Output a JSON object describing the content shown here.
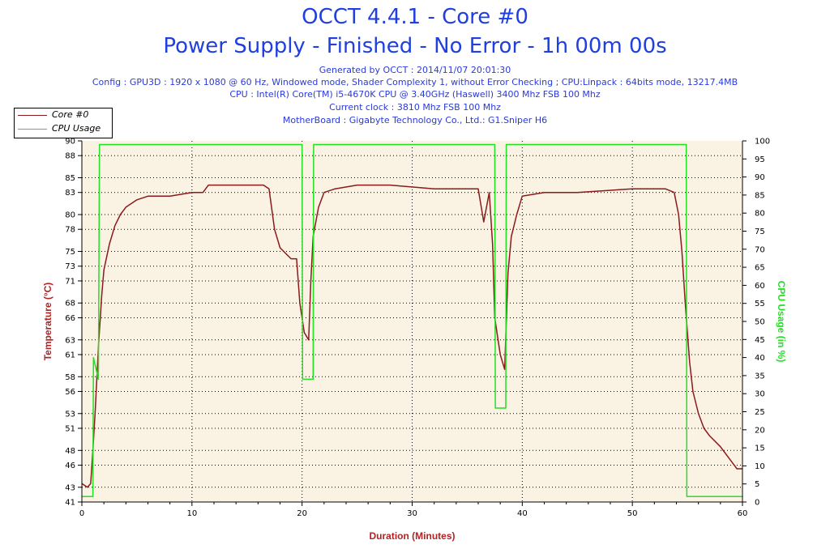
{
  "header": {
    "title": "OCCT 4.4.1 - Core #0",
    "subtitle": "Power Supply - Finished - No Error - 1h 00m 00s",
    "info_lines": [
      "Generated by OCCT : 2014/11/07 20:01:30",
      "Config : GPU3D : 1920 x 1080 @ 60 Hz, Windowed mode, Shader Complexity 1, without Error Checking ; CPU:Linpack : 64bits mode, 13217.4MB",
      "CPU : Intel(R) Core(TM) i5-4670K CPU @ 3.40GHz (Haswell) 3400 Mhz FSB 100 Mhz",
      "Current clock : 3810 Mhz FSB 100 Mhz",
      "MotherBoard : Gigabyte Technology Co., Ltd.: G1.Sniper H6"
    ]
  },
  "legend": [
    {
      "label": "Core #0",
      "color": "#8b1a1a"
    },
    {
      "label": "CPU Usage",
      "color": "#22e022"
    }
  ],
  "chart_data": {
    "type": "line",
    "xlabel": "Duration (Minutes)",
    "ylabel": "Temperature (°C)",
    "ylabel_right": "CPU Usage (in %)",
    "xlim": [
      0,
      60
    ],
    "ylim": [
      41,
      90
    ],
    "ylim_right": [
      0,
      100
    ],
    "x_ticks": [
      0,
      10,
      20,
      30,
      40,
      50,
      60
    ],
    "y_ticks": [
      41,
      43,
      46,
      48,
      51,
      53,
      56,
      58,
      61,
      63,
      66,
      68,
      71,
      73,
      75,
      78,
      80,
      83,
      85,
      88,
      90
    ],
    "y_ticks_right": [
      0,
      5,
      10,
      15,
      20,
      25,
      30,
      35,
      40,
      45,
      50,
      55,
      60,
      65,
      70,
      75,
      80,
      85,
      90,
      95,
      100
    ],
    "grid": true,
    "background": "#faf3e4",
    "legend_position": "top-left",
    "series": [
      {
        "name": "Core #0",
        "axis": "left",
        "color": "#8b1a1a",
        "x": [
          0,
          0.5,
          0.8,
          1.0,
          1.2,
          1.5,
          1.8,
          2.0,
          2.5,
          3.0,
          3.5,
          4.0,
          5.0,
          6.0,
          8.0,
          10.0,
          11.0,
          11.5,
          12.0,
          15.0,
          16.5,
          17.0,
          17.5,
          18.0,
          19.0,
          19.5,
          19.8,
          20.2,
          20.6,
          20.8,
          21.0,
          21.5,
          22.0,
          23.0,
          25.0,
          28.0,
          32.0,
          35.0,
          36.0,
          36.5,
          37.0,
          37.3,
          37.5,
          38.0,
          38.4,
          38.7,
          39.0,
          39.5,
          40.0,
          42.0,
          45.0,
          50.0,
          53.0,
          53.8,
          54.2,
          54.5,
          54.8,
          55.2,
          55.5,
          56.0,
          56.5,
          57.0,
          58.0,
          59.0,
          59.5,
          60.0
        ],
        "y": [
          43.5,
          43,
          43.5,
          48,
          53,
          62,
          69,
          72.5,
          76,
          78.5,
          80,
          81,
          82,
          82.5,
          82.5,
          83,
          83,
          84,
          84,
          84,
          84,
          83.5,
          78,
          75.5,
          74,
          74,
          68,
          64,
          63,
          71,
          77,
          81,
          83,
          83.5,
          84,
          84,
          83.5,
          83.5,
          83.5,
          79,
          83,
          76,
          66,
          61,
          59,
          72,
          77,
          80,
          82.5,
          83,
          83,
          83.5,
          83.5,
          83,
          80,
          75,
          68,
          60,
          56,
          53,
          51,
          50,
          48.5,
          46.5,
          45.5,
          45.5
        ]
      },
      {
        "name": "CPU Usage",
        "axis": "right",
        "color": "#22e022",
        "x": [
          0,
          1.0,
          1.05,
          1.5,
          1.6,
          20.0,
          20.05,
          21.0,
          21.05,
          37.5,
          37.55,
          38.5,
          38.55,
          54.9,
          54.95,
          60.0
        ],
        "y": [
          1.5,
          1.5,
          40,
          34,
          99,
          99,
          34,
          34,
          99,
          99,
          26,
          26,
          99,
          99,
          1.5,
          1.5
        ]
      }
    ]
  }
}
